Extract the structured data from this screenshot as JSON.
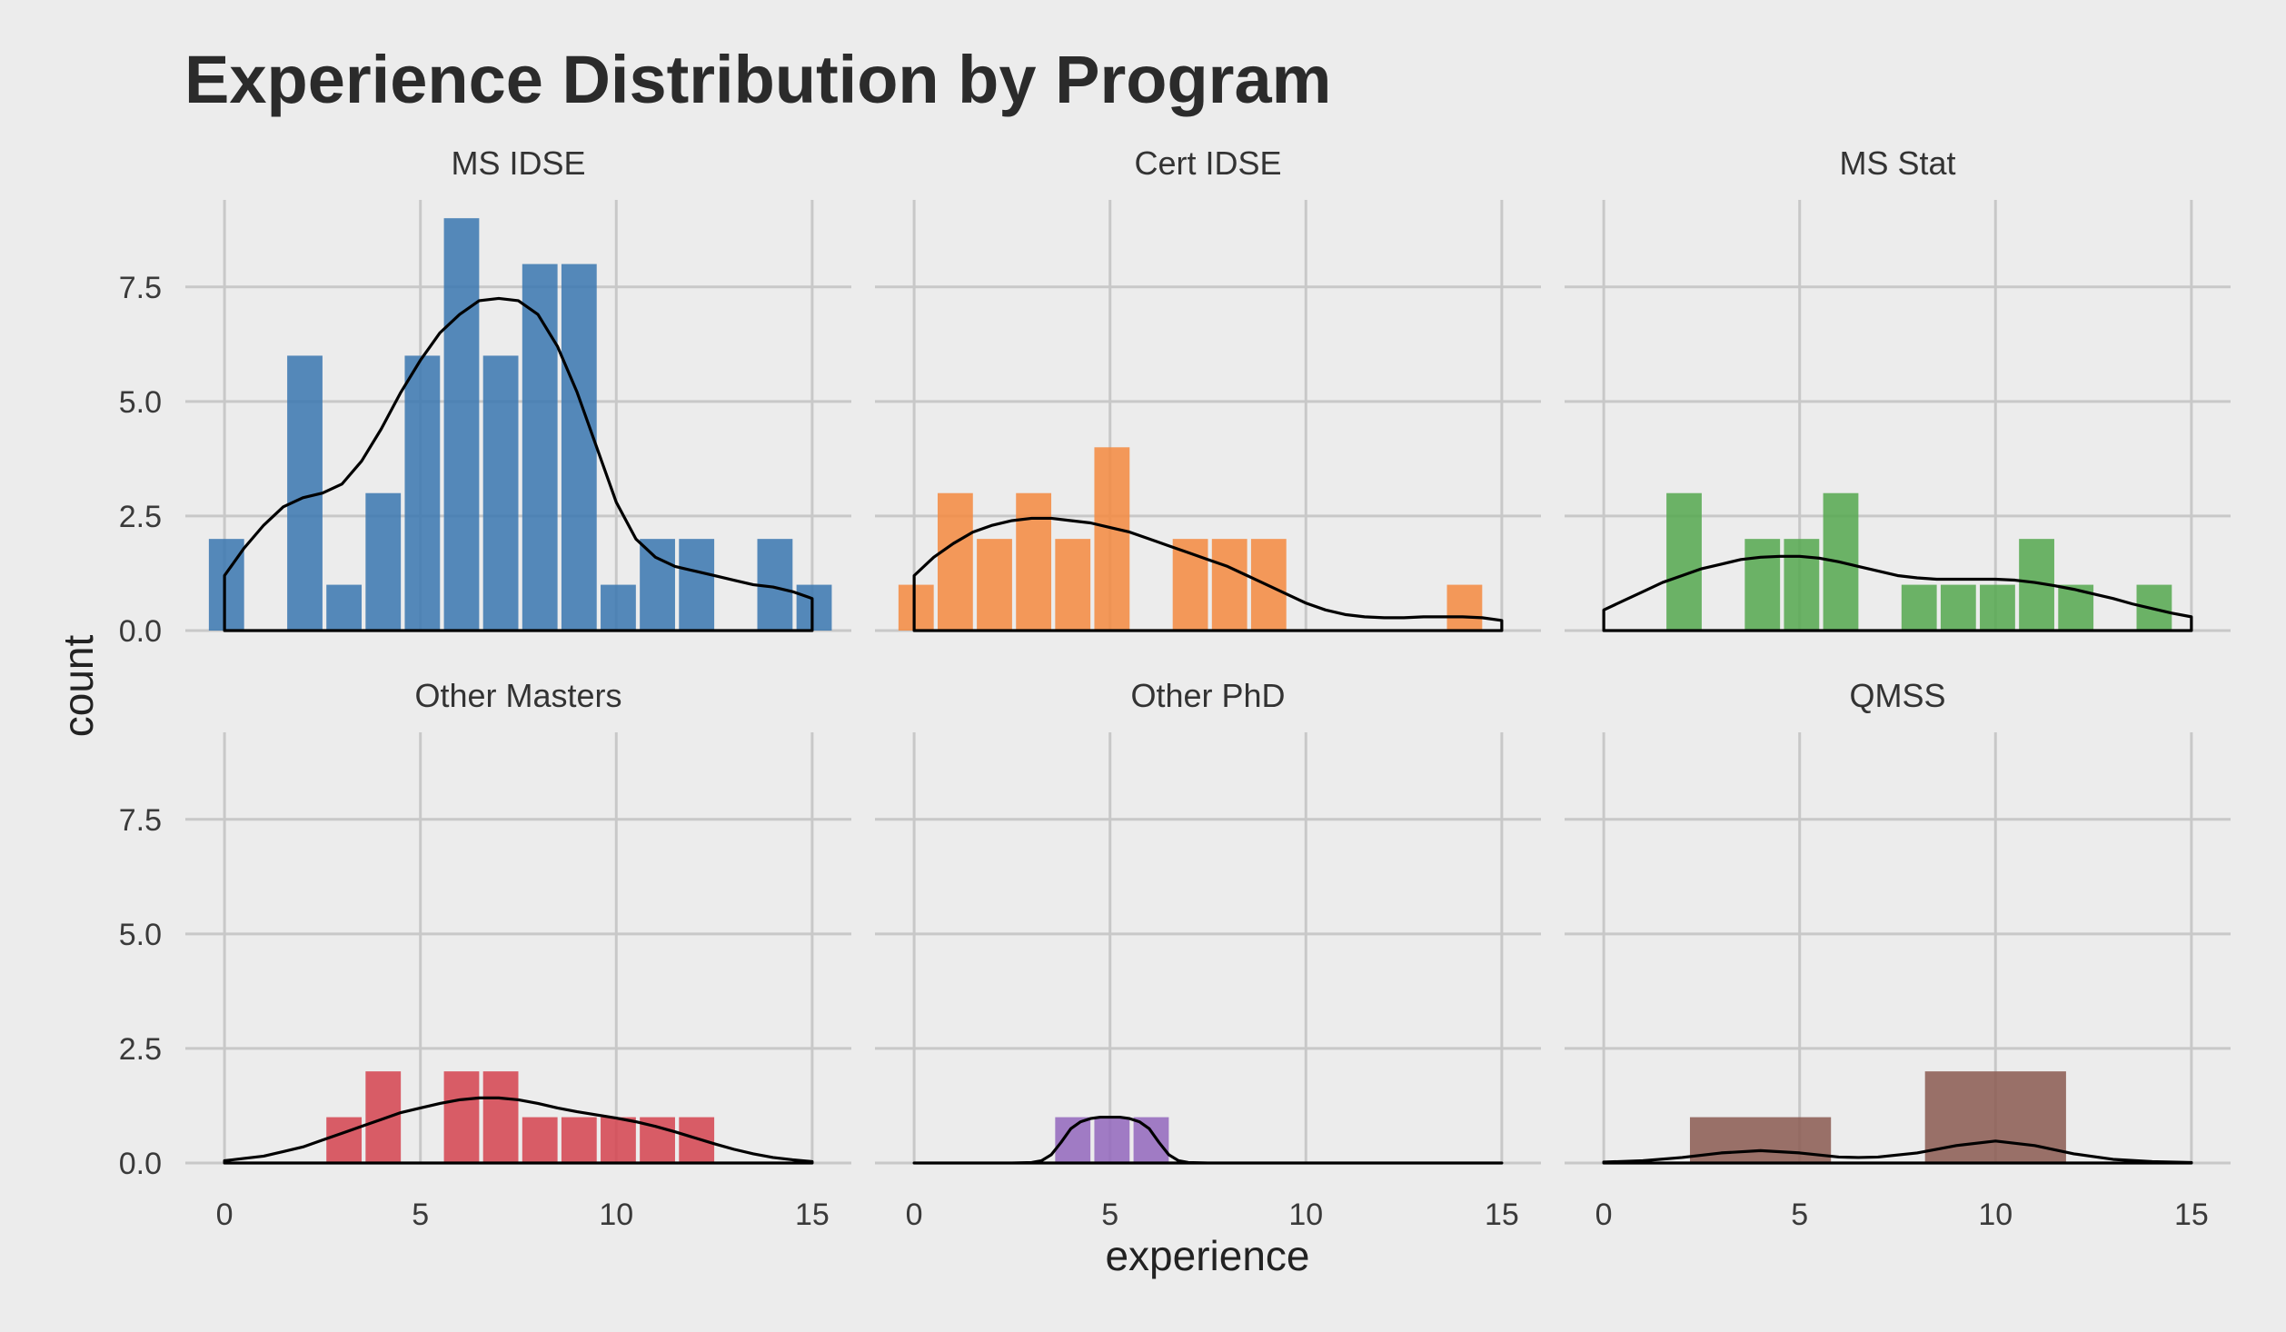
{
  "chart_data": {
    "type": "bar",
    "title": "Experience Distribution by Program",
    "xlabel": "experience",
    "ylabel": "count",
    "xlim": [
      -1,
      16
    ],
    "ylim": [
      0,
      9.4
    ],
    "x_ticks": [
      0,
      5,
      10,
      15
    ],
    "y_ticks": [
      "0.0",
      "2.5",
      "5.0",
      "7.5"
    ],
    "y_tick_values": [
      0,
      2.5,
      5,
      7.5
    ],
    "grid": true,
    "overlay": "density curve (black line)",
    "panels": [
      {
        "name": "MS IDSE",
        "color": "#3a77b0",
        "bins": [
          {
            "x0": -0.4,
            "x1": 0.5,
            "count": 2
          },
          {
            "x0": 1.6,
            "x1": 2.5,
            "count": 6
          },
          {
            "x0": 2.6,
            "x1": 3.5,
            "count": 1
          },
          {
            "x0": 3.6,
            "x1": 4.5,
            "count": 3
          },
          {
            "x0": 4.6,
            "x1": 5.5,
            "count": 6
          },
          {
            "x0": 5.6,
            "x1": 6.5,
            "count": 9
          },
          {
            "x0": 6.6,
            "x1": 7.5,
            "count": 6
          },
          {
            "x0": 7.6,
            "x1": 8.5,
            "count": 8
          },
          {
            "x0": 8.6,
            "x1": 9.5,
            "count": 8
          },
          {
            "x0": 9.6,
            "x1": 10.5,
            "count": 1
          },
          {
            "x0": 10.6,
            "x1": 11.5,
            "count": 2
          },
          {
            "x0": 11.6,
            "x1": 12.5,
            "count": 2
          },
          {
            "x0": 13.6,
            "x1": 14.5,
            "count": 2
          },
          {
            "x0": 14.6,
            "x1": 15.5,
            "count": 1
          }
        ],
        "density": [
          [
            0,
            1.2
          ],
          [
            0.5,
            1.8
          ],
          [
            1,
            2.3
          ],
          [
            1.5,
            2.7
          ],
          [
            2,
            2.9
          ],
          [
            2.5,
            3.0
          ],
          [
            3,
            3.2
          ],
          [
            3.5,
            3.7
          ],
          [
            4,
            4.4
          ],
          [
            4.5,
            5.2
          ],
          [
            5,
            5.9
          ],
          [
            5.5,
            6.5
          ],
          [
            6,
            6.9
          ],
          [
            6.5,
            7.2
          ],
          [
            7,
            7.25
          ],
          [
            7.5,
            7.2
          ],
          [
            8,
            6.9
          ],
          [
            8.5,
            6.2
          ],
          [
            9,
            5.2
          ],
          [
            9.5,
            4.0
          ],
          [
            10,
            2.8
          ],
          [
            10.5,
            2.0
          ],
          [
            11,
            1.6
          ],
          [
            11.5,
            1.4
          ],
          [
            12,
            1.3
          ],
          [
            12.5,
            1.2
          ],
          [
            13,
            1.1
          ],
          [
            13.5,
            1.0
          ],
          [
            14,
            0.95
          ],
          [
            14.5,
            0.85
          ],
          [
            15,
            0.7
          ]
        ]
      },
      {
        "name": "Cert IDSE",
        "color": "#f5893f",
        "bins": [
          {
            "x0": -0.4,
            "x1": 0.5,
            "count": 1
          },
          {
            "x0": 0.6,
            "x1": 1.5,
            "count": 3
          },
          {
            "x0": 1.6,
            "x1": 2.5,
            "count": 2
          },
          {
            "x0": 2.6,
            "x1": 3.5,
            "count": 3
          },
          {
            "x0": 3.6,
            "x1": 4.5,
            "count": 2
          },
          {
            "x0": 4.6,
            "x1": 5.5,
            "count": 4
          },
          {
            "x0": 6.6,
            "x1": 7.5,
            "count": 2
          },
          {
            "x0": 7.6,
            "x1": 8.5,
            "count": 2
          },
          {
            "x0": 8.6,
            "x1": 9.5,
            "count": 2
          },
          {
            "x0": 13.6,
            "x1": 14.5,
            "count": 1
          }
        ],
        "density": [
          [
            0,
            1.2
          ],
          [
            0.5,
            1.6
          ],
          [
            1,
            1.9
          ],
          [
            1.5,
            2.15
          ],
          [
            2,
            2.3
          ],
          [
            2.5,
            2.4
          ],
          [
            3,
            2.45
          ],
          [
            3.5,
            2.45
          ],
          [
            4,
            2.4
          ],
          [
            4.5,
            2.35
          ],
          [
            5,
            2.25
          ],
          [
            5.5,
            2.15
          ],
          [
            6,
            2.0
          ],
          [
            6.5,
            1.85
          ],
          [
            7,
            1.7
          ],
          [
            7.5,
            1.55
          ],
          [
            8,
            1.4
          ],
          [
            8.5,
            1.2
          ],
          [
            9,
            1.0
          ],
          [
            9.5,
            0.8
          ],
          [
            10,
            0.6
          ],
          [
            10.5,
            0.45
          ],
          [
            11,
            0.35
          ],
          [
            11.5,
            0.3
          ],
          [
            12,
            0.28
          ],
          [
            12.5,
            0.28
          ],
          [
            13,
            0.3
          ],
          [
            13.5,
            0.3
          ],
          [
            14,
            0.3
          ],
          [
            14.5,
            0.28
          ],
          [
            15,
            0.22
          ]
        ]
      },
      {
        "name": "MS Stat",
        "color": "#55a84f",
        "bins": [
          {
            "x0": 1.6,
            "x1": 2.5,
            "count": 3
          },
          {
            "x0": 3.6,
            "x1": 4.5,
            "count": 2
          },
          {
            "x0": 4.6,
            "x1": 5.5,
            "count": 2
          },
          {
            "x0": 5.6,
            "x1": 6.5,
            "count": 3
          },
          {
            "x0": 7.6,
            "x1": 8.5,
            "count": 1
          },
          {
            "x0": 8.6,
            "x1": 9.5,
            "count": 1
          },
          {
            "x0": 9.6,
            "x1": 10.5,
            "count": 1
          },
          {
            "x0": 10.6,
            "x1": 11.5,
            "count": 2
          },
          {
            "x0": 11.6,
            "x1": 12.5,
            "count": 1
          },
          {
            "x0": 13.6,
            "x1": 14.5,
            "count": 1
          }
        ],
        "density": [
          [
            0,
            0.45
          ],
          [
            0.5,
            0.65
          ],
          [
            1,
            0.85
          ],
          [
            1.5,
            1.05
          ],
          [
            2,
            1.2
          ],
          [
            2.5,
            1.35
          ],
          [
            3,
            1.45
          ],
          [
            3.5,
            1.55
          ],
          [
            4,
            1.6
          ],
          [
            4.5,
            1.62
          ],
          [
            5,
            1.62
          ],
          [
            5.5,
            1.58
          ],
          [
            6,
            1.5
          ],
          [
            6.5,
            1.4
          ],
          [
            7,
            1.3
          ],
          [
            7.5,
            1.2
          ],
          [
            8,
            1.15
          ],
          [
            8.5,
            1.12
          ],
          [
            9,
            1.12
          ],
          [
            9.5,
            1.12
          ],
          [
            10,
            1.12
          ],
          [
            10.5,
            1.1
          ],
          [
            11,
            1.05
          ],
          [
            11.5,
            0.98
          ],
          [
            12,
            0.9
          ],
          [
            12.5,
            0.8
          ],
          [
            13,
            0.7
          ],
          [
            13.5,
            0.58
          ],
          [
            14,
            0.48
          ],
          [
            14.5,
            0.38
          ],
          [
            15,
            0.3
          ]
        ]
      },
      {
        "name": "Other Masters",
        "color": "#d5434f",
        "bins": [
          {
            "x0": 2.6,
            "x1": 3.5,
            "count": 1
          },
          {
            "x0": 3.6,
            "x1": 4.5,
            "count": 2
          },
          {
            "x0": 5.6,
            "x1": 6.5,
            "count": 2
          },
          {
            "x0": 6.6,
            "x1": 7.5,
            "count": 2
          },
          {
            "x0": 7.6,
            "x1": 8.5,
            "count": 1
          },
          {
            "x0": 8.6,
            "x1": 9.5,
            "count": 1
          },
          {
            "x0": 9.6,
            "x1": 10.5,
            "count": 1
          },
          {
            "x0": 10.6,
            "x1": 11.5,
            "count": 1
          },
          {
            "x0": 11.6,
            "x1": 12.5,
            "count": 1
          }
        ],
        "density": [
          [
            0,
            0.05
          ],
          [
            0.5,
            0.1
          ],
          [
            1,
            0.15
          ],
          [
            1.5,
            0.25
          ],
          [
            2,
            0.35
          ],
          [
            2.5,
            0.5
          ],
          [
            3,
            0.65
          ],
          [
            3.5,
            0.8
          ],
          [
            4,
            0.95
          ],
          [
            4.5,
            1.1
          ],
          [
            5,
            1.2
          ],
          [
            5.5,
            1.3
          ],
          [
            6,
            1.38
          ],
          [
            6.5,
            1.42
          ],
          [
            7,
            1.42
          ],
          [
            7.5,
            1.38
          ],
          [
            8,
            1.3
          ],
          [
            8.5,
            1.2
          ],
          [
            9,
            1.12
          ],
          [
            9.5,
            1.05
          ],
          [
            10,
            0.98
          ],
          [
            10.5,
            0.9
          ],
          [
            11,
            0.8
          ],
          [
            11.5,
            0.68
          ],
          [
            12,
            0.55
          ],
          [
            12.5,
            0.42
          ],
          [
            13,
            0.3
          ],
          [
            13.5,
            0.2
          ],
          [
            14,
            0.12
          ],
          [
            14.5,
            0.07
          ],
          [
            15,
            0.03
          ]
        ]
      },
      {
        "name": "Other PhD",
        "color": "#9367bd",
        "bins": [
          {
            "x0": 3.6,
            "x1": 4.5,
            "count": 1
          },
          {
            "x0": 4.6,
            "x1": 5.5,
            "count": 1
          },
          {
            "x0": 5.6,
            "x1": 6.5,
            "count": 1
          }
        ],
        "density": [
          [
            0,
            0
          ],
          [
            2.5,
            0
          ],
          [
            3,
            0.01
          ],
          [
            3.25,
            0.05
          ],
          [
            3.5,
            0.18
          ],
          [
            3.75,
            0.45
          ],
          [
            4,
            0.75
          ],
          [
            4.25,
            0.9
          ],
          [
            4.5,
            0.97
          ],
          [
            4.75,
            1.0
          ],
          [
            5,
            1.0
          ],
          [
            5.25,
            1.0
          ],
          [
            5.5,
            0.97
          ],
          [
            5.75,
            0.9
          ],
          [
            6,
            0.75
          ],
          [
            6.25,
            0.45
          ],
          [
            6.5,
            0.18
          ],
          [
            6.75,
            0.05
          ],
          [
            7,
            0.01
          ],
          [
            7.5,
            0
          ],
          [
            15,
            0
          ]
        ]
      },
      {
        "name": "QMSS",
        "color": "#8b5a51",
        "bins": [
          {
            "x0": 2.2,
            "x1": 5.8,
            "count": 1
          },
          {
            "x0": 8.2,
            "x1": 11.8,
            "count": 2
          }
        ],
        "density": [
          [
            0,
            0.02
          ],
          [
            1,
            0.05
          ],
          [
            2,
            0.12
          ],
          [
            3,
            0.22
          ],
          [
            4,
            0.27
          ],
          [
            5,
            0.22
          ],
          [
            6,
            0.13
          ],
          [
            6.5,
            0.12
          ],
          [
            7,
            0.13
          ],
          [
            8,
            0.22
          ],
          [
            9,
            0.38
          ],
          [
            10,
            0.48
          ],
          [
            11,
            0.38
          ],
          [
            12,
            0.2
          ],
          [
            13,
            0.08
          ],
          [
            14,
            0.03
          ],
          [
            15,
            0.01
          ]
        ]
      }
    ]
  }
}
